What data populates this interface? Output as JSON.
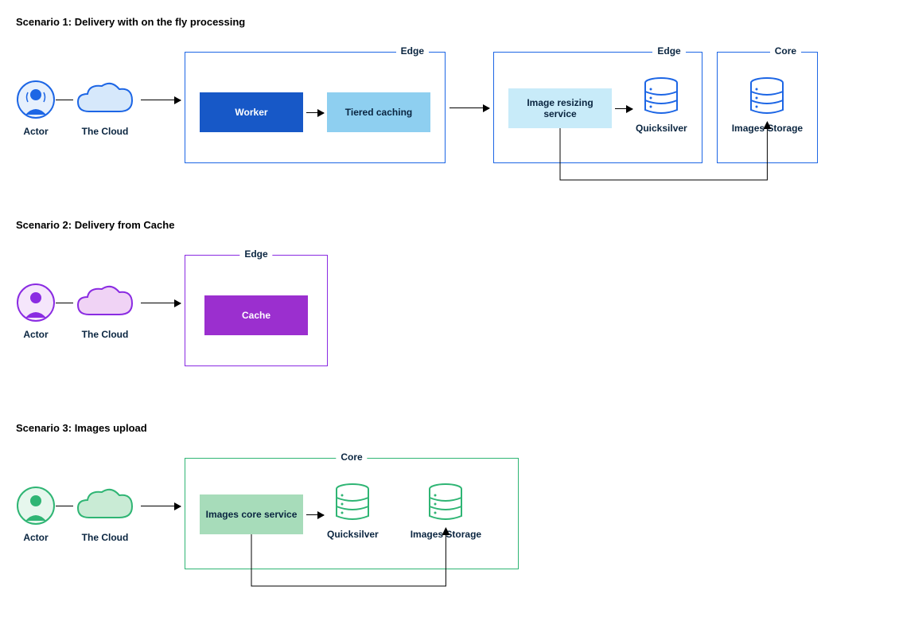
{
  "colors": {
    "blue_border": "#1d66e5",
    "blue_dark_fill": "#1758c7",
    "blue_light_fill": "#8ecff0",
    "blue_pale_fill": "#c8ebf9",
    "purple_border": "#8a2be2",
    "purple_fill": "#9b2fcf",
    "purple_pale": "#f0d3f5",
    "green_border": "#2fb574",
    "green_fill": "#a7dcba",
    "text_dark": "#0a2540",
    "white": "#ffffff"
  },
  "scenario1": {
    "title": "Scenario 1: Delivery with on the fly processing",
    "actor_label": "Actor",
    "cloud_label": "The Cloud",
    "edge1_label": "Edge",
    "worker_label": "Worker",
    "tiered_label": "Tiered caching",
    "edge2_label": "Edge",
    "resizing_label": "Image resizing service",
    "quicksilver_label": "Quicksilver",
    "core_label": "Core",
    "storage_label": "Images Storage"
  },
  "scenario2": {
    "title": "Scenario 2: Delivery from Cache",
    "actor_label": "Actor",
    "cloud_label": "The Cloud",
    "edge_label": "Edge",
    "cache_label": "Cache"
  },
  "scenario3": {
    "title": "Scenario 3: Images upload",
    "actor_label": "Actor",
    "cloud_label": "The Cloud",
    "core_label": "Core",
    "core_service_label": "Images core service",
    "quicksilver_label": "Quicksilver",
    "storage_label": "Images Storage"
  }
}
